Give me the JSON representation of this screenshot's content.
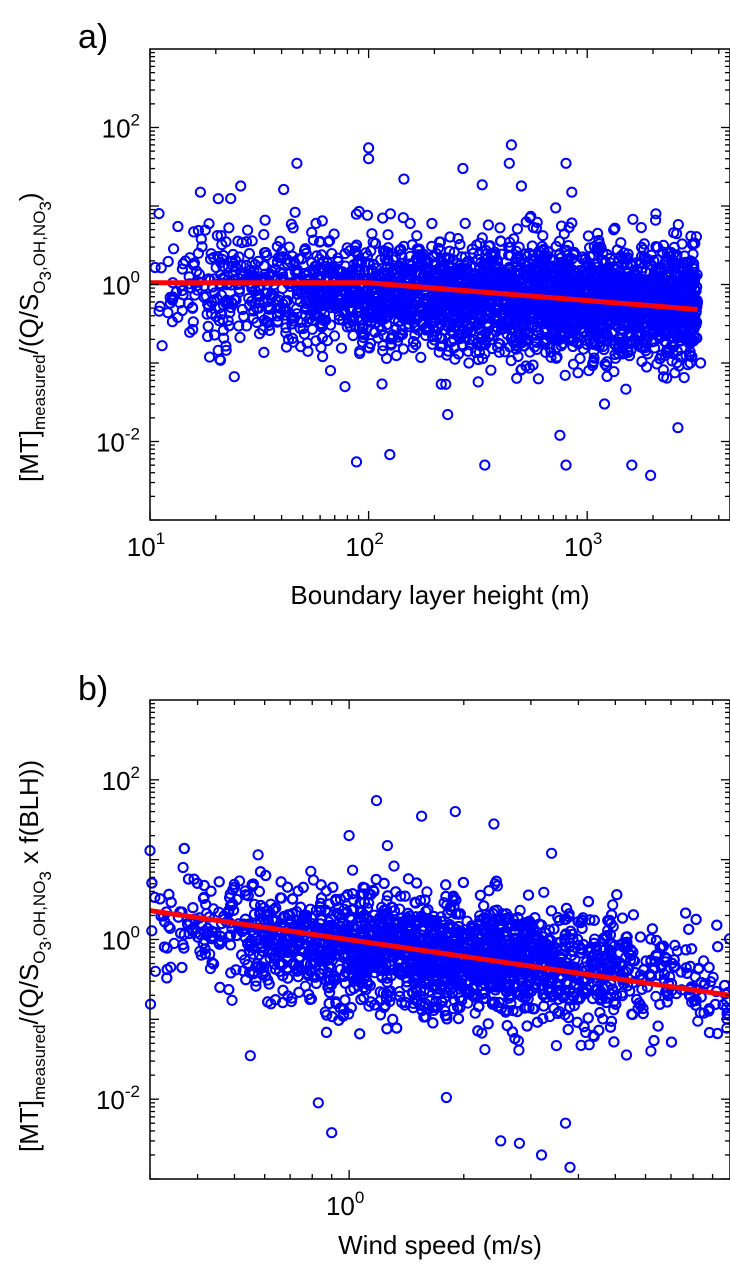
{
  "chart_data": [
    {
      "type": "scatter",
      "panel_label": "a)",
      "xlabel": "Boundary layer height (m)",
      "ylabel": {
        "pre": "[MT]",
        "sub1": "measured",
        "mid": "/(Q/S",
        "sub2": "O",
        "subsub2": "3",
        "sub2b": ",OH,NO",
        "subsub2b": "3",
        "post": ")"
      },
      "x_scale": "log",
      "y_scale": "log",
      "xlim": [
        10,
        4500
      ],
      "ylim": [
        0.001,
        1000
      ],
      "x_ticks": [
        10,
        100,
        1000
      ],
      "x_tick_labels": [
        {
          "base": "10",
          "exp": "1"
        },
        {
          "base": "10",
          "exp": "2"
        },
        {
          "base": "10",
          "exp": "3"
        }
      ],
      "y_ticks": [
        0.01,
        1,
        100
      ],
      "y_tick_labels": [
        {
          "base": "10",
          "exp": "-2"
        },
        {
          "base": "10",
          "exp": "0"
        },
        {
          "base": "10",
          "exp": "2"
        }
      ],
      "grid": false,
      "marker_color": "#0000ff",
      "fit_color": "#ff0000",
      "fit_line": {
        "x": [
          10,
          100,
          3200
        ],
        "y": [
          1.05,
          1.05,
          0.48
        ]
      },
      "cloud": {
        "x_range": [
          10,
          3200
        ],
        "y_center_left": 0.95,
        "y_center_right": 0.55,
        "spread_decades": 0.35
      },
      "notable_points": [
        {
          "x": 11,
          "y": 8
        },
        {
          "x": 17,
          "y": 15
        },
        {
          "x": 26,
          "y": 18
        },
        {
          "x": 47,
          "y": 35
        },
        {
          "x": 100,
          "y": 55
        },
        {
          "x": 100,
          "y": 40
        },
        {
          "x": 155,
          "y": 6
        },
        {
          "x": 145,
          "y": 22
        },
        {
          "x": 270,
          "y": 30
        },
        {
          "x": 450,
          "y": 60
        },
        {
          "x": 440,
          "y": 35
        },
        {
          "x": 500,
          "y": 18
        },
        {
          "x": 800,
          "y": 35
        },
        {
          "x": 850,
          "y": 15
        },
        {
          "x": 78,
          "y": 0.05
        },
        {
          "x": 230,
          "y": 0.022
        },
        {
          "x": 88,
          "y": 0.0055
        },
        {
          "x": 125,
          "y": 0.0068
        },
        {
          "x": 340,
          "y": 0.005
        },
        {
          "x": 750,
          "y": 0.012
        },
        {
          "x": 800,
          "y": 0.005
        },
        {
          "x": 1600,
          "y": 0.005
        },
        {
          "x": 1950,
          "y": 0.0037
        },
        {
          "x": 1200,
          "y": 0.03
        },
        {
          "x": 2600,
          "y": 0.015
        },
        {
          "x": 3300,
          "y": 0.1
        }
      ]
    },
    {
      "type": "scatter",
      "panel_label": "b)",
      "xlabel": "Wind speed (m/s)",
      "ylabel": {
        "pre": "[MT]",
        "sub1": "measured",
        "mid": "/(Q/S",
        "sub2": "O",
        "subsub2": "3",
        "sub2b": ",OH,NO",
        "subsub2b": "3",
        "post": " x f(BLH))"
      },
      "x_scale": "log",
      "y_scale": "log",
      "xlim": [
        0.3,
        10
      ],
      "ylim": [
        0.001,
        1000
      ],
      "x_ticks": [
        1
      ],
      "x_tick_labels": [
        {
          "base": "10",
          "exp": "0"
        }
      ],
      "y_ticks": [
        0.01,
        1,
        100
      ],
      "y_tick_labels": [
        {
          "base": "10",
          "exp": "-2"
        },
        {
          "base": "10",
          "exp": "0"
        },
        {
          "base": "10",
          "exp": "2"
        }
      ],
      "grid": false,
      "marker_color": "#0000ff",
      "fit_color": "#ff0000",
      "fit_line": {
        "x": [
          0.3,
          10
        ],
        "y": [
          2.3,
          0.2
        ]
      },
      "cloud": {
        "x_range": [
          0.3,
          10
        ],
        "y_center_left": 1.6,
        "y_center_right": 0.25,
        "spread_decades": 0.35
      },
      "notable_points": [
        {
          "x": 0.3,
          "y": 13
        },
        {
          "x": 0.31,
          "y": 0.4
        },
        {
          "x": 0.34,
          "y": 0.45
        },
        {
          "x": 0.5,
          "y": 4.5
        },
        {
          "x": 0.55,
          "y": 0.035
        },
        {
          "x": 0.83,
          "y": 0.009
        },
        {
          "x": 0.9,
          "y": 0.0038
        },
        {
          "x": 1.0,
          "y": 20
        },
        {
          "x": 1.18,
          "y": 55
        },
        {
          "x": 1.26,
          "y": 15
        },
        {
          "x": 1.55,
          "y": 35
        },
        {
          "x": 1.9,
          "y": 40
        },
        {
          "x": 2.4,
          "y": 28
        },
        {
          "x": 3.4,
          "y": 12
        },
        {
          "x": 2.5,
          "y": 0.003
        },
        {
          "x": 2.8,
          "y": 0.0028
        },
        {
          "x": 3.2,
          "y": 0.002
        },
        {
          "x": 3.8,
          "y": 0.0014
        },
        {
          "x": 3.7,
          "y": 0.005
        },
        {
          "x": 1.8,
          "y": 0.0105
        },
        {
          "x": 6.2,
          "y": 0.04
        }
      ]
    }
  ]
}
